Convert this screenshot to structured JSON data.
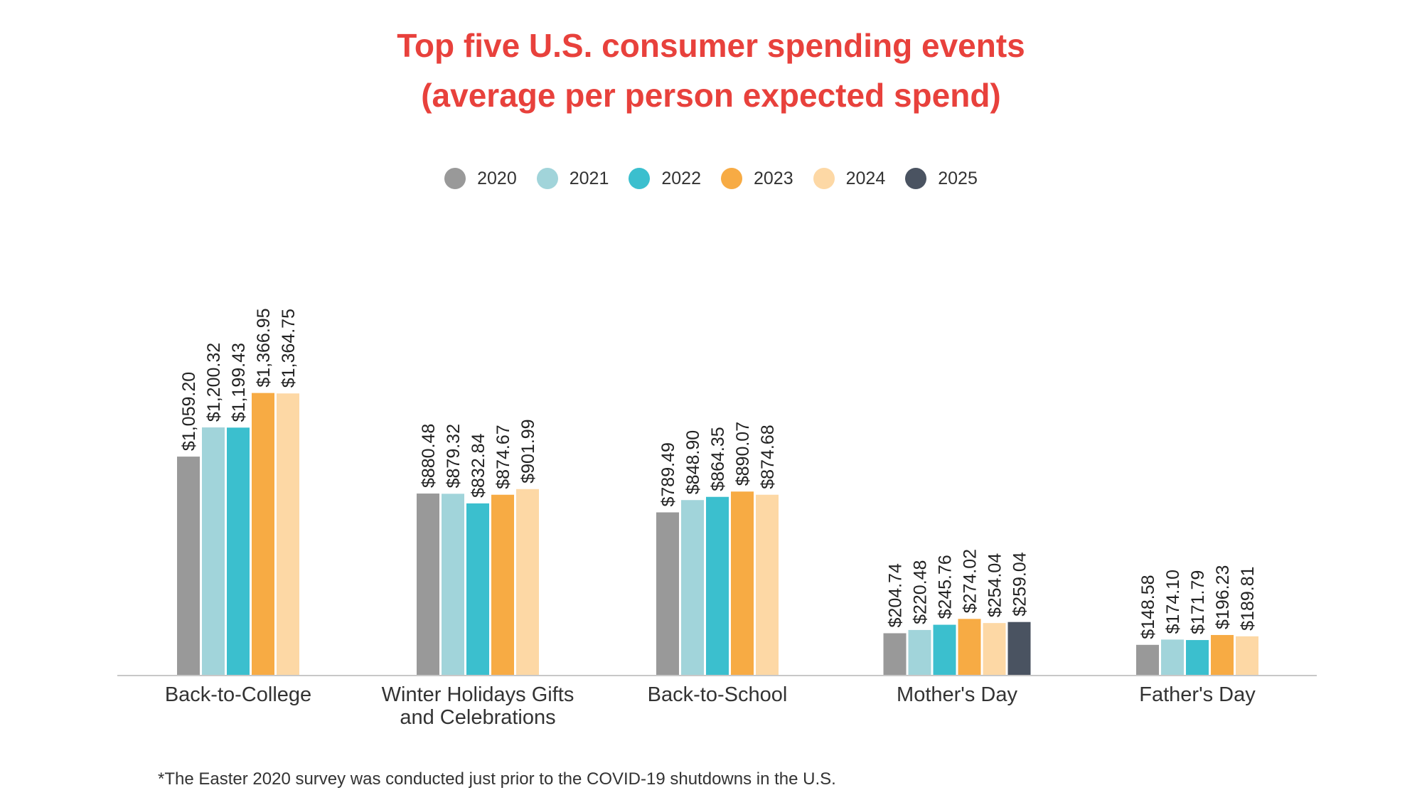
{
  "title_line1": "Top five U.S. consumer spending events",
  "title_line2": "(average per person expected spend)",
  "footnote": "*The Easter 2020 survey was conducted just prior to the COVID-19 shutdowns in the U.S.",
  "chart_data": {
    "type": "bar",
    "title": "Top five U.S. consumer spending events (average per person expected spend)",
    "xlabel": "",
    "ylabel": "",
    "ylim": [
      0,
      1400
    ],
    "grid": false,
    "legend_position": "top-center",
    "categories": [
      [
        "Back-to-College"
      ],
      [
        "Winter Holidays Gifts",
        "and Celebrations"
      ],
      [
        "Back-to-School"
      ],
      [
        "Mother's Day"
      ],
      [
        "Father's Day"
      ]
    ],
    "series": [
      {
        "name": "2020",
        "color": "#999999",
        "values": [
          1059.2,
          880.48,
          789.49,
          204.74,
          148.58
        ],
        "labels": [
          "$1,059.20",
          "$880.48",
          "$789.49",
          "$204.74",
          "$148.58"
        ]
      },
      {
        "name": "2021",
        "color": "#a1d4da",
        "values": [
          1200.32,
          879.32,
          848.9,
          220.48,
          174.1
        ],
        "labels": [
          "$1,200.32",
          "$879.32",
          "$848.90",
          "$220.48",
          "$174.10"
        ]
      },
      {
        "name": "2022",
        "color": "#3bbfce",
        "values": [
          1199.43,
          832.84,
          864.35,
          245.76,
          171.79
        ],
        "labels": [
          "$1,199.43",
          "$832.84",
          "$864.35",
          "$245.76",
          "$171.79"
        ]
      },
      {
        "name": "2023",
        "color": "#f7ab44",
        "values": [
          1366.95,
          874.67,
          890.07,
          274.02,
          196.23
        ],
        "labels": [
          "$1,366.95",
          "$874.67",
          "$890.07",
          "$274.02",
          "$196.23"
        ]
      },
      {
        "name": "2024",
        "color": "#fdd8a5",
        "values": [
          1364.75,
          901.99,
          874.68,
          254.04,
          189.81
        ],
        "labels": [
          "$1,364.75",
          "$901.99",
          "$874.68",
          "$254.04",
          "$189.81"
        ]
      },
      {
        "name": "2025",
        "color": "#4a5361",
        "values": [
          null,
          null,
          null,
          259.04,
          null
        ],
        "labels": [
          null,
          null,
          null,
          "$259.04",
          null
        ]
      }
    ]
  }
}
